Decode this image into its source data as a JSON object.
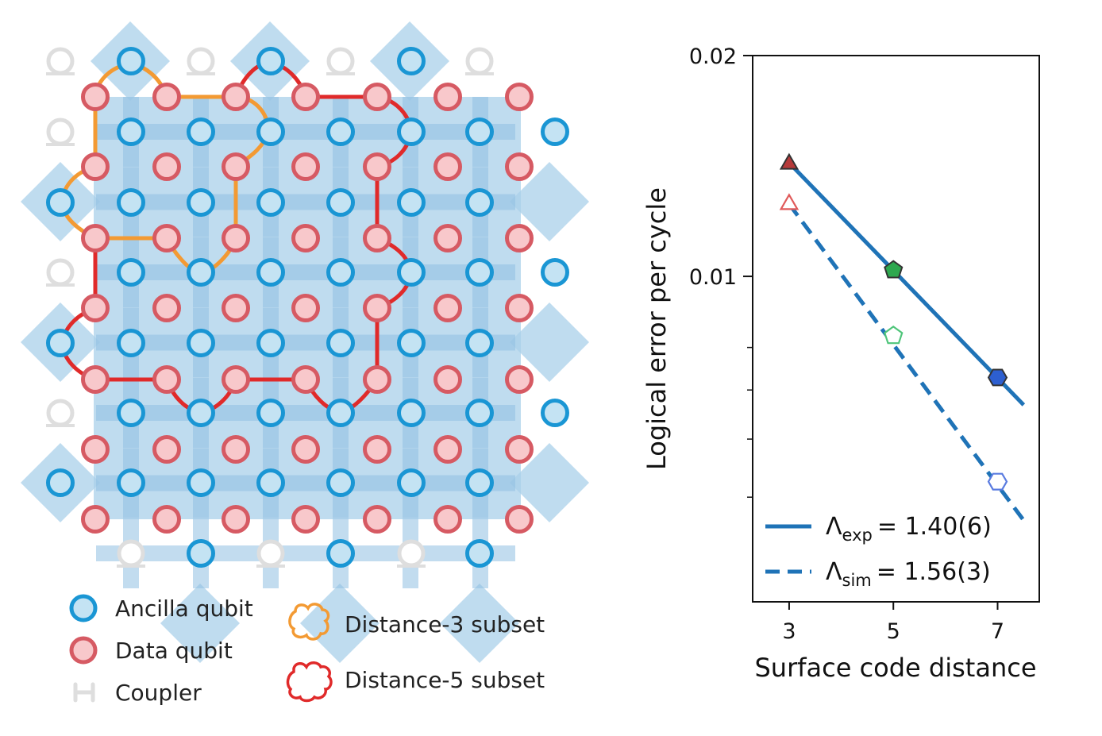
{
  "lattice": {
    "legend": {
      "ancilla_label": "Ancilla qubit",
      "data_label": "Data qubit",
      "coupler_label": "Coupler",
      "d3_label": "Distance-3 subset",
      "d5_label": "Distance-5 subset"
    },
    "colors": {
      "ancilla_fill": "#c4e3f3",
      "ancilla_stroke": "#1a96d4",
      "data_fill": "#f8c8cb",
      "data_stroke": "#d65a63",
      "plaquette": "#a9d0ea",
      "plaquette_dark": "#8fc0e2",
      "coupler": "#dedede",
      "d3_outline": "#f39a33",
      "d5_outline": "#e02a2a"
    }
  },
  "chart_data": {
    "type": "scatter",
    "title": "",
    "xlabel": "Surface code distance",
    "ylabel": "Logical error per cycle",
    "xlim": [
      2.3,
      7.8
    ],
    "ylim": [
      0.0036,
      0.02
    ],
    "yscale": "log",
    "x_ticks": [
      3,
      5,
      7
    ],
    "y_ticks": [
      0.01,
      0.02
    ],
    "y_tick_labels": [
      "0.01",
      "0.02"
    ],
    "y_minor_ticks": [
      0.005,
      0.006,
      0.007,
      0.008
    ],
    "grid": false,
    "legend_position": "bottom-left",
    "series": [
      {
        "name": "Λexp = 1.40(6)",
        "legend_symbol": "Λ",
        "legend_sub": "exp",
        "legend_value": "= 1.40(6)",
        "style": "solid",
        "color": "#1f73b7",
        "fit_x": [
          3,
          7.5
        ],
        "fit_y": [
          0.01428,
          0.00668
        ],
        "points": [
          {
            "x": 3,
            "y": 0.0143,
            "marker": "triangle",
            "fill": "#b53a3a"
          },
          {
            "x": 5,
            "y": 0.0102,
            "marker": "pentagon",
            "fill": "#2ea84f"
          },
          {
            "x": 7,
            "y": 0.00728,
            "marker": "hexagon",
            "fill": "#2d5fd0"
          }
        ]
      },
      {
        "name": "Λsim = 1.56(3)",
        "legend_symbol": "Λ",
        "legend_sub": "sim",
        "legend_value": "= 1.56(3)",
        "style": "dashed",
        "color": "#1f73b7",
        "fit_x": [
          3,
          7.5
        ],
        "fit_y": [
          0.01255,
          0.00465
        ],
        "points": [
          {
            "x": 3,
            "y": 0.0126,
            "marker": "triangle",
            "fill": "none",
            "edge": "#e05a5a"
          },
          {
            "x": 5,
            "y": 0.0083,
            "marker": "pentagon",
            "fill": "none",
            "edge": "#4fc57a"
          },
          {
            "x": 7,
            "y": 0.00525,
            "marker": "hexagon",
            "fill": "none",
            "edge": "#5a7be0"
          }
        ]
      }
    ]
  }
}
